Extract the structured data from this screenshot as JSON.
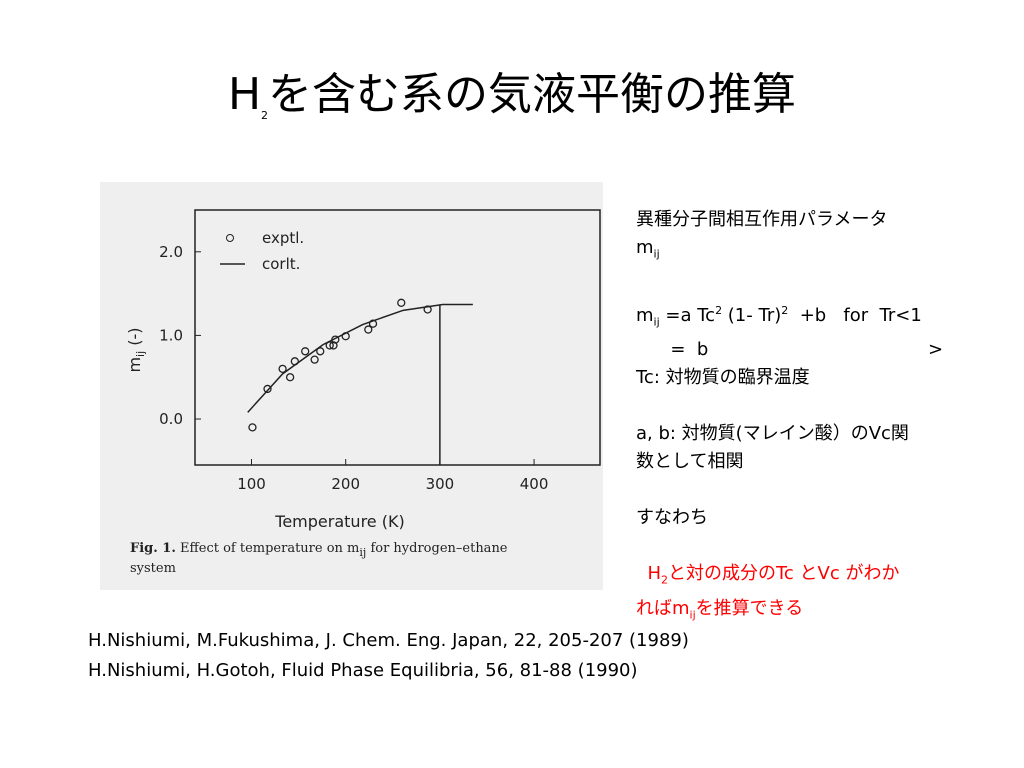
{
  "title": [
    {
      "text": "H"
    },
    {
      "sub": "2"
    },
    {
      "text": "を含む系の気液平衡の推算"
    }
  ],
  "side": {
    "blocks": [
      {
        "lines": [
          [
            {
              "text": "異種分子間相互作用パラメータ"
            }
          ],
          [
            {
              "text": "m"
            },
            {
              "sub": "ij"
            }
          ]
        ]
      },
      {
        "lines": [
          [
            {
              "text": "m"
            },
            {
              "sub": "ij"
            },
            {
              "text": " =a Tc"
            },
            {
              "sup": "2"
            },
            {
              "text": " (1- Tr)"
            },
            {
              "sup": "2"
            },
            {
              "text": "  +b   for  Tr<1"
            }
          ],
          [
            {
              "text": "      =  b"
            },
            {
              "right": ">"
            }
          ],
          [
            {
              "text": "Tc: 対物質の臨界温度"
            }
          ]
        ]
      },
      {
        "lines": [
          [
            {
              "text": "a, b: 対物質(マレイン酸）のVc関"
            }
          ],
          [
            {
              "text": "数として相関"
            }
          ]
        ]
      },
      {
        "lines": [
          [
            {
              "text": "すなわち"
            }
          ]
        ]
      },
      {
        "color": "#ff0000",
        "lines": [
          [
            {
              "text": "  H"
            },
            {
              "sub": "2"
            },
            {
              "text": "と対の成分のTc とVc がわか"
            }
          ],
          [
            {
              "text": "れば"
            },
            {
              "text": "m"
            },
            {
              "sub": "ij"
            },
            {
              "text": "を推算できる"
            }
          ]
        ]
      }
    ]
  },
  "references": [
    "H.Nishiumi, M.Fukushima, J. Chem. Eng. Japan, 22, 205-207 (1989)",
    "H.Nishiumi, H.Gotoh, Fluid Phase Equilibria, 56, 81-88 (1990)"
  ],
  "chart_data": {
    "type": "scatter",
    "x_label": "Temperature (K)",
    "y_label": [
      {
        "text": "m"
      },
      {
        "sub": "ij"
      },
      {
        "text": " (-)"
      }
    ],
    "caption": [
      [
        {
          "text": "Fig. 1."
        },
        {
          "text": "  Effect of temperature on m"
        },
        {
          "sub": "ij"
        },
        {
          "text": " for hydrogen–ethane"
        }
      ],
      [
        {
          "text": "system"
        }
      ]
    ],
    "xlim": [
      40,
      470
    ],
    "ylim": [
      -0.55,
      2.5
    ],
    "xticks": [
      100,
      200,
      300,
      400
    ],
    "yticks": [
      {
        "value": 0,
        "label": "0.0"
      },
      {
        "value": 1,
        "label": "1.0"
      },
      {
        "value": 2,
        "label": "2.0"
      }
    ],
    "vline_x": 300,
    "color": "#222222",
    "series": [
      {
        "name": "exptl.",
        "marker": "circle",
        "x": [
          101,
          117,
          133,
          141,
          146,
          157,
          167,
          173,
          183,
          187,
          189,
          200,
          224,
          229,
          259,
          287
        ],
        "values": [
          -0.1,
          0.36,
          0.6,
          0.5,
          0.69,
          0.81,
          0.71,
          0.81,
          0.88,
          0.88,
          0.95,
          0.99,
          1.07,
          1.14,
          1.39,
          1.31
        ]
      },
      {
        "name": "corlt.",
        "marker": "line",
        "x": [
          96,
          133,
          176,
          218,
          261,
          303,
          335
        ],
        "values": [
          0.08,
          0.54,
          0.89,
          1.13,
          1.3,
          1.37,
          1.37
        ]
      }
    ]
  }
}
